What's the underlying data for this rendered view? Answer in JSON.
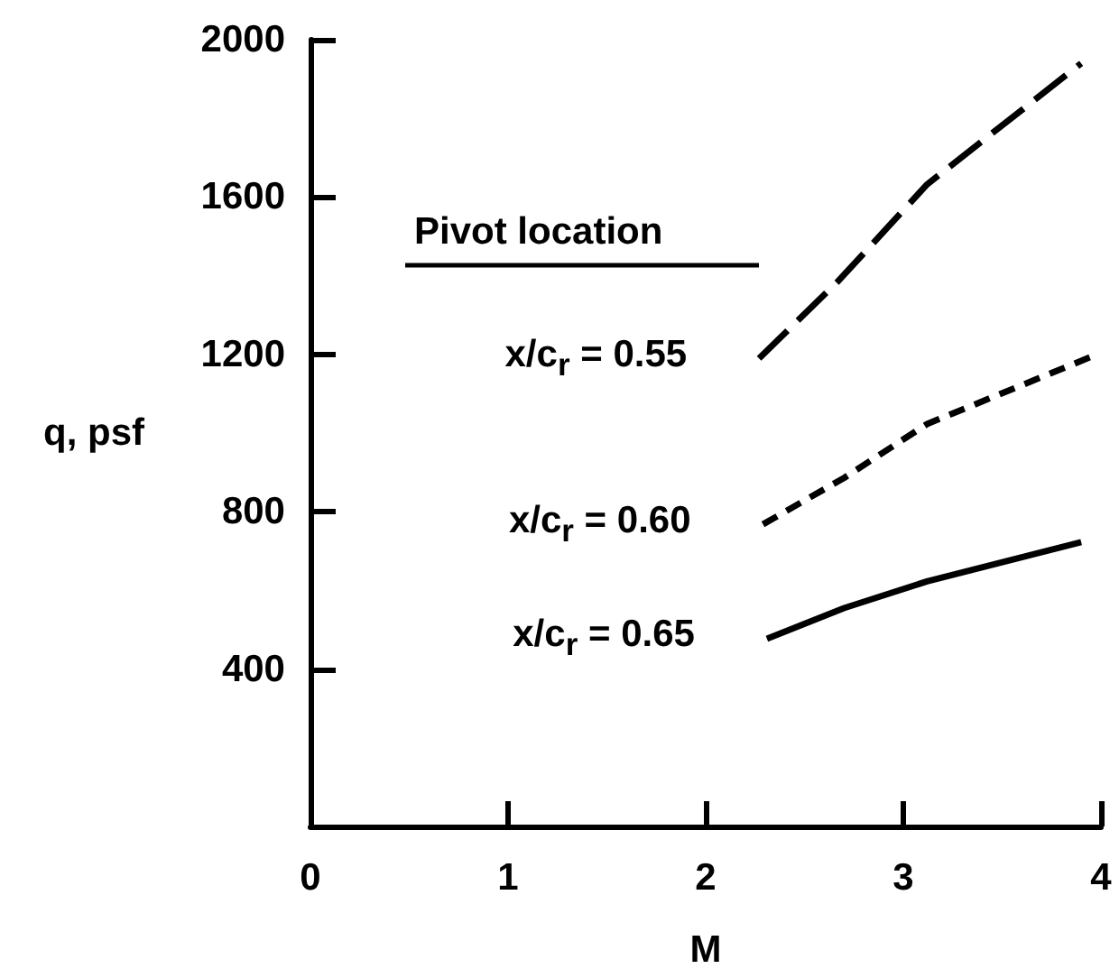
{
  "chart_data": {
    "type": "line",
    "xlabel": "M",
    "ylabel": "q, psf",
    "legend_title": "Pivot location",
    "xlim": [
      0,
      4
    ],
    "xticks": [
      0,
      1,
      2,
      3,
      4
    ],
    "ylim": [
      0,
      2000
    ],
    "yticks": [
      400,
      800,
      1200,
      1600,
      2000
    ],
    "grid": false,
    "legend": false,
    "marker": "none",
    "series": [
      {
        "name": "x/c$_{r}$ = 0.55",
        "color": "#000000",
        "line_style": "dashed",
        "x": [
          2.27,
          2.67,
          3.12,
          3.9
        ],
        "values": [
          1190,
          1386,
          1632,
          1940
        ]
      },
      {
        "name": "x/c$_{r}$ = 0.60",
        "color": "#000000",
        "line_style": "dashed",
        "x": [
          2.29,
          2.7,
          3.12,
          3.98
        ],
        "values": [
          768,
          886,
          1023,
          1200
        ]
      },
      {
        "name": "x/c$_{r}$ = 0.65",
        "color": "#000000",
        "line_style": "solid",
        "x": [
          2.31,
          2.7,
          3.12,
          3.9
        ],
        "values": [
          477,
          555,
          623,
          723
        ]
      }
    ]
  }
}
